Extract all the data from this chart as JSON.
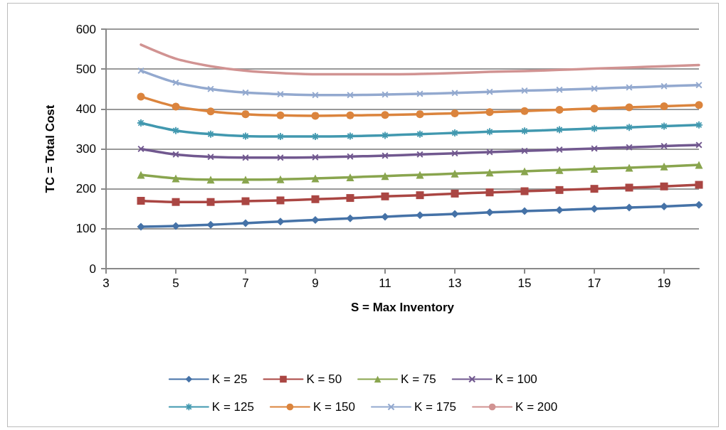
{
  "chart_data": {
    "type": "line",
    "xlabel": "S = Max Inventory",
    "ylabel": "TC = Total Cost",
    "x": [
      4,
      5,
      6,
      7,
      8,
      9,
      10,
      11,
      12,
      13,
      14,
      15,
      16,
      17,
      18,
      19,
      20
    ],
    "xlim": [
      3,
      20
    ],
    "xticks": [
      3,
      5,
      7,
      9,
      11,
      13,
      15,
      17,
      19
    ],
    "ylim": [
      0,
      600
    ],
    "yticks": [
      0,
      100,
      200,
      300,
      400,
      500,
      600
    ],
    "grid": "y",
    "legend": "bottom",
    "line_style": "solid",
    "series": [
      {
        "name": "K = 25",
        "color": "#4572a7",
        "marker": "diamond",
        "values": [
          105,
          107,
          110,
          114,
          118,
          122,
          126,
          130,
          134,
          137,
          141,
          144,
          147,
          150,
          153,
          156,
          160
        ]
      },
      {
        "name": "K = 50",
        "color": "#aa4643",
        "marker": "square",
        "values": [
          170,
          167,
          167,
          169,
          171,
          174,
          177,
          181,
          184,
          188,
          191,
          194,
          197,
          200,
          203,
          206,
          210
        ]
      },
      {
        "name": "K = 75",
        "color": "#89a54e",
        "marker": "triangle",
        "values": [
          235,
          226,
          223,
          223,
          224,
          226,
          229,
          232,
          235,
          238,
          241,
          244,
          247,
          250,
          253,
          256,
          260
        ]
      },
      {
        "name": "K = 100",
        "color": "#71588f",
        "marker": "cross",
        "values": [
          300,
          286,
          280,
          278,
          278,
          279,
          281,
          283,
          286,
          289,
          292,
          295,
          298,
          301,
          304,
          307,
          310
        ]
      },
      {
        "name": "K = 125",
        "color": "#4198af",
        "marker": "star",
        "values": [
          365,
          346,
          337,
          332,
          331,
          331,
          332,
          334,
          337,
          340,
          343,
          345,
          348,
          351,
          354,
          357,
          360
        ]
      },
      {
        "name": "K = 150",
        "color": "#db843d",
        "marker": "circle",
        "values": [
          431,
          406,
          394,
          387,
          384,
          383,
          384,
          385,
          387,
          389,
          392,
          395,
          398,
          401,
          404,
          407,
          410
        ]
      },
      {
        "name": "K = 175",
        "color": "#93a9cf",
        "marker": "cross",
        "values": [
          496,
          466,
          450,
          441,
          437,
          435,
          435,
          436,
          438,
          440,
          443,
          446,
          448,
          451,
          454,
          457,
          460
        ]
      },
      {
        "name": "K = 200",
        "color": "#d19392",
        "marker": "none",
        "values": [
          561,
          526,
          507,
          496,
          490,
          487,
          487,
          487,
          488,
          490,
          493,
          495,
          498,
          501,
          504,
          507,
          510
        ]
      }
    ]
  }
}
